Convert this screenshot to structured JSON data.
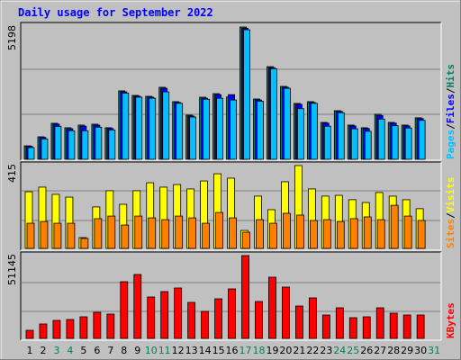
{
  "title": "Daily usage for September 2022",
  "legend_separator": "/",
  "chart_data": [
    {
      "type": "bar",
      "ylim": [
        0,
        5198
      ],
      "yticks": [
        5198
      ],
      "series": [
        {
          "name": "Hits",
          "color": "#00805c",
          "values": [
            530,
            885,
            1415,
            1240,
            1345,
            1380,
            1240,
            2690,
            2510,
            2475,
            2830,
            2265,
            1735,
            2440,
            2580,
            2450,
            5198,
            2370,
            3640,
            2865,
            2195,
            2265,
            1450,
            1910,
            1345,
            1240,
            1770,
            1450,
            1345,
            1630,
            null
          ]
        },
        {
          "name": "Files",
          "color": "#0000ff",
          "values": [
            510,
            860,
            1380,
            1200,
            1300,
            1340,
            1210,
            2650,
            2480,
            2440,
            2790,
            2230,
            1700,
            2400,
            2540,
            2540,
            5150,
            2330,
            3600,
            2830,
            2160,
            2230,
            1420,
            1880,
            1310,
            1210,
            1720,
            1420,
            1310,
            1600,
            null
          ]
        },
        {
          "name": "Pages",
          "color": "#00c0ff",
          "values": [
            460,
            800,
            1290,
            1120,
            1120,
            1260,
            1150,
            2600,
            2440,
            2400,
            2650,
            2200,
            1660,
            2360,
            2400,
            2330,
            5090,
            2280,
            3560,
            2790,
            1990,
            2200,
            1300,
            1830,
            1200,
            1100,
            1580,
            1320,
            1230,
            1530,
            null
          ]
        }
      ]
    },
    {
      "type": "bar",
      "ylim": [
        0,
        415
      ],
      "yticks": [
        415
      ],
      "series": [
        {
          "name": "Visits",
          "color": "#ffff00",
          "values": [
            284,
            307,
            271,
            257,
            54,
            208,
            289,
            221,
            289,
            329,
            307,
            320,
            298,
            338,
            374,
            352,
            90,
            262,
            194,
            334,
            415,
            298,
            262,
            266,
            244,
            230,
            280,
            262,
            244,
            199,
            null
          ]
        },
        {
          "name": "Sites",
          "color": "#ff8000",
          "values": [
            126,
            135,
            126,
            126,
            50,
            149,
            162,
            117,
            162,
            153,
            144,
            162,
            153,
            126,
            180,
            153,
            81,
            144,
            126,
            176,
            167,
            140,
            144,
            135,
            149,
            158,
            144,
            216,
            162,
            140,
            null
          ]
        }
      ]
    },
    {
      "type": "bar",
      "ylim": [
        0,
        51145
      ],
      "yticks": [
        51145
      ],
      "categories": [
        "1",
        "2",
        "3",
        "4",
        "5",
        "6",
        "7",
        "8",
        "9",
        "10",
        "11",
        "12",
        "13",
        "14",
        "15",
        "16",
        "17",
        "18",
        "19",
        "20",
        "21",
        "22",
        "23",
        "24",
        "25",
        "26",
        "27",
        "28",
        "29",
        "30",
        "31"
      ],
      "category_colors": [
        "#000000",
        "#000000",
        "#00805c",
        "#00805c",
        "#000000",
        "#000000",
        "#000000",
        "#000000",
        "#000000",
        "#00805c",
        "#00805c",
        "#000000",
        "#000000",
        "#000000",
        "#000000",
        "#000000",
        "#00805c",
        "#00805c",
        "#000000",
        "#000000",
        "#000000",
        "#000000",
        "#000000",
        "#00805c",
        "#00805c",
        "#000000",
        "#000000",
        "#000000",
        "#000000",
        "#000000",
        "#00805c"
      ],
      "series": [
        {
          "name": "KBytes",
          "color": "#ff0000",
          "values": [
            5000,
            8900,
            11120,
            11670,
            13340,
            16120,
            15010,
            35020,
            39470,
            25570,
            28910,
            31130,
            22240,
            16680,
            24460,
            30580,
            51145,
            22790,
            37800,
            31690,
            20010,
            25020,
            14450,
            18900,
            12790,
            13340,
            18900,
            15570,
            14450,
            14450,
            null
          ]
        }
      ]
    }
  ]
}
